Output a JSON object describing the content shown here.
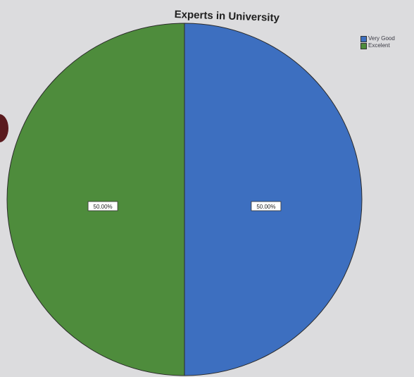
{
  "chart_data": {
    "type": "pie",
    "title": "Experts in University",
    "categories": [
      "Very Good",
      "Excellent"
    ],
    "values": [
      50,
      50
    ],
    "labels": [
      "50.00%",
      "50.00%"
    ],
    "colors": [
      "#3d6fc0",
      "#4e8c3c"
    ],
    "legend": {
      "position": "top-right",
      "entries": [
        "Very Good",
        "Excelent"
      ]
    }
  }
}
